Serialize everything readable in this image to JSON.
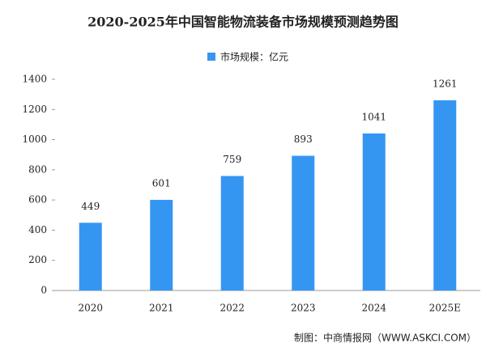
{
  "chart_data": {
    "type": "bar",
    "title": "2020-2025年中国智能物流装备市场规模预测趋势图",
    "series": [
      {
        "name": "市场规模：亿元",
        "color": "#3596f2",
        "values": [
          449,
          601,
          759,
          893,
          1041,
          1261
        ]
      }
    ],
    "categories": [
      "2020",
      "2021",
      "2022",
      "2023",
      "2024",
      "2025E"
    ],
    "ylim": [
      0,
      1400
    ],
    "yticks": [
      0,
      200,
      400,
      600,
      800,
      1000,
      1200,
      1400
    ],
    "grid": false,
    "source": "制图：中商情报网（WWW.ASKCI.COM）"
  }
}
